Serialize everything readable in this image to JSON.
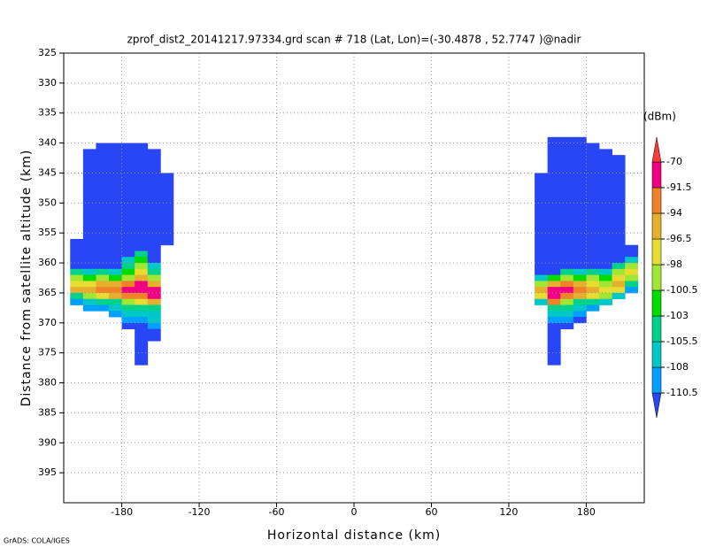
{
  "chart_data": {
    "type": "heatmap",
    "title": "zprof_dist2_20141217.97334.grd  scan # 718  (Lat, Lon)=(-30.4878 , 52.7747 )@nadir",
    "xlabel": "Horizontal distance (km)",
    "ylabel": "Distance from satellite altitude (km)",
    "credit": "GrADS: COLA/IGES",
    "unit_label": "(dBm)",
    "xlim": [
      -225,
      225
    ],
    "ylim": [
      400,
      325
    ],
    "xticks": [
      -180,
      -120,
      -60,
      0,
      60,
      120,
      180
    ],
    "yticks": [
      325,
      330,
      335,
      340,
      345,
      350,
      355,
      360,
      365,
      370,
      375,
      380,
      385,
      390,
      395
    ],
    "grid": true,
    "row_height": 1,
    "levels": [
      -110.5,
      -108,
      -105.5,
      -103,
      -100.5,
      -98,
      -96.5,
      -94,
      -91.5,
      -70
    ],
    "colors": [
      "#2846f5",
      "#00a0ff",
      "#00c8c8",
      "#00d28c",
      "#00dc00",
      "#a0e632",
      "#e6dc32",
      "#e6af2d",
      "#f08228",
      "#f00082",
      "#fa3c3c"
    ],
    "columns": [
      {
        "x0": -220,
        "x1": -210,
        "y0": 356,
        "values": [
          -115,
          -115,
          -115,
          -115,
          -115,
          -104,
          -99,
          -97,
          -95,
          -104,
          -109
        ]
      },
      {
        "x0": -210,
        "x1": -200,
        "y0": 341,
        "values": [
          -115,
          -115,
          -115,
          -115,
          -115,
          -115,
          -115,
          -115,
          -115,
          -115,
          -115,
          -115,
          -115,
          -115,
          -115,
          -115,
          -115,
          -115,
          -115,
          -115,
          -107,
          -102,
          -97,
          -95,
          -99,
          -107,
          -109
        ]
      },
      {
        "x0": -200,
        "x1": -190,
        "y0": 340,
        "values": [
          -115,
          -115,
          -115,
          -115,
          -115,
          -115,
          -115,
          -115,
          -115,
          -115,
          -115,
          -115,
          -115,
          -115,
          -115,
          -115,
          -115,
          -115,
          -115,
          -115,
          -115,
          -104,
          -99,
          -95,
          -93,
          -97,
          -104,
          -109
        ]
      },
      {
        "x0": -190,
        "x1": -180,
        "y0": 340,
        "values": [
          -115,
          -115,
          -115,
          -115,
          -115,
          -115,
          -115,
          -115,
          -115,
          -115,
          -115,
          -115,
          -115,
          -115,
          -115,
          -115,
          -115,
          -115,
          -115,
          -115,
          -115,
          -107,
          -102,
          -95,
          -93,
          -95,
          -104,
          -107,
          -109
        ]
      },
      {
        "x0": -180,
        "x1": -170,
        "y0": 340,
        "values": [
          -115,
          -115,
          -115,
          -115,
          -115,
          -115,
          -115,
          -115,
          -115,
          -115,
          -115,
          -115,
          -115,
          -115,
          -115,
          -115,
          -115,
          -115,
          -115,
          -107,
          -104,
          -102,
          -99,
          -93,
          -88,
          -93,
          -99,
          -104,
          -107,
          -109,
          -115
        ]
      },
      {
        "x0": -170,
        "x1": -160,
        "y0": 340,
        "values": [
          -115,
          -115,
          -115,
          -115,
          -115,
          -115,
          -115,
          -115,
          -115,
          -115,
          -115,
          -115,
          -115,
          -115,
          -115,
          -115,
          -115,
          -115,
          -104,
          -102,
          -99,
          -97,
          -95,
          -88,
          -88,
          -93,
          -97,
          -104,
          -107,
          -109,
          -115,
          -115,
          -115,
          -115,
          -115,
          -115,
          -115
        ]
      },
      {
        "x0": -160,
        "x1": -150,
        "y0": 341,
        "values": [
          -115,
          -115,
          -115,
          -115,
          -115,
          -115,
          -115,
          -115,
          -115,
          -115,
          -115,
          -115,
          -115,
          -115,
          -115,
          -115,
          -115,
          -115,
          -115,
          -107,
          -104,
          -99,
          -95,
          -88,
          -88,
          -95,
          -104,
          -107,
          -107,
          -109,
          -115,
          -115
        ]
      },
      {
        "x0": -150,
        "x1": -140,
        "y0": 345,
        "values": [
          -115,
          -115,
          -115,
          -115,
          -115,
          -115,
          -115,
          -115,
          -115,
          -115,
          -115,
          -115
        ]
      },
      {
        "x0": 140,
        "x1": 150,
        "y0": 345,
        "values": [
          -115,
          -115,
          -115,
          -115,
          -115,
          -115,
          -115,
          -115,
          -115,
          -115,
          -115,
          -115,
          -115,
          -115,
          -115,
          -115,
          -115,
          -107,
          -99,
          -95,
          -97,
          -107
        ]
      },
      {
        "x0": 150,
        "x1": 160,
        "y0": 339,
        "values": [
          -115,
          -115,
          -115,
          -115,
          -115,
          -115,
          -115,
          -115,
          -115,
          -115,
          -115,
          -115,
          -115,
          -115,
          -115,
          -115,
          -115,
          -115,
          -115,
          -115,
          -115,
          -115,
          -115,
          -102,
          -95,
          -88,
          -88,
          -93,
          -104,
          -107,
          -109,
          -115,
          -115,
          -115,
          -115,
          -115,
          -115,
          -115
        ]
      },
      {
        "x0": 160,
        "x1": 170,
        "y0": 339,
        "values": [
          -115,
          -115,
          -115,
          -115,
          -115,
          -115,
          -115,
          -115,
          -115,
          -115,
          -115,
          -115,
          -115,
          -115,
          -115,
          -115,
          -115,
          -115,
          -115,
          -115,
          -115,
          -115,
          -104,
          -99,
          -93,
          -88,
          -93,
          -99,
          -104,
          -107,
          -109,
          -115
        ]
      },
      {
        "x0": 170,
        "x1": 180,
        "y0": 339,
        "values": [
          -115,
          -115,
          -115,
          -115,
          -115,
          -115,
          -115,
          -115,
          -115,
          -115,
          -115,
          -115,
          -115,
          -115,
          -115,
          -115,
          -115,
          -115,
          -115,
          -115,
          -115,
          -115,
          -107,
          -102,
          -95,
          -93,
          -95,
          -104,
          -107,
          -109,
          -115
        ]
      },
      {
        "x0": 180,
        "x1": 190,
        "y0": 340,
        "values": [
          -115,
          -115,
          -115,
          -115,
          -115,
          -115,
          -115,
          -115,
          -115,
          -115,
          -115,
          -115,
          -115,
          -115,
          -115,
          -115,
          -115,
          -115,
          -115,
          -115,
          -115,
          -104,
          -99,
          -97,
          -95,
          -97,
          -104,
          -109
        ]
      },
      {
        "x0": 190,
        "x1": 200,
        "y0": 341,
        "values": [
          -115,
          -115,
          -115,
          -115,
          -115,
          -115,
          -115,
          -115,
          -115,
          -115,
          -115,
          -115,
          -115,
          -115,
          -115,
          -115,
          -115,
          -115,
          -115,
          -115,
          -107,
          -102,
          -99,
          -97,
          -99,
          -107
        ]
      },
      {
        "x0": 200,
        "x1": 210,
        "y0": 342,
        "values": [
          -115,
          -115,
          -115,
          -115,
          -115,
          -115,
          -115,
          -115,
          -115,
          -115,
          -115,
          -115,
          -115,
          -115,
          -115,
          -115,
          -115,
          -115,
          -104,
          -99,
          -97,
          -95,
          -97,
          -107
        ]
      },
      {
        "x0": 210,
        "x1": 220,
        "y0": 357,
        "values": [
          -115,
          -115,
          -107,
          -99,
          -97,
          -99,
          -104,
          -109
        ]
      }
    ]
  }
}
